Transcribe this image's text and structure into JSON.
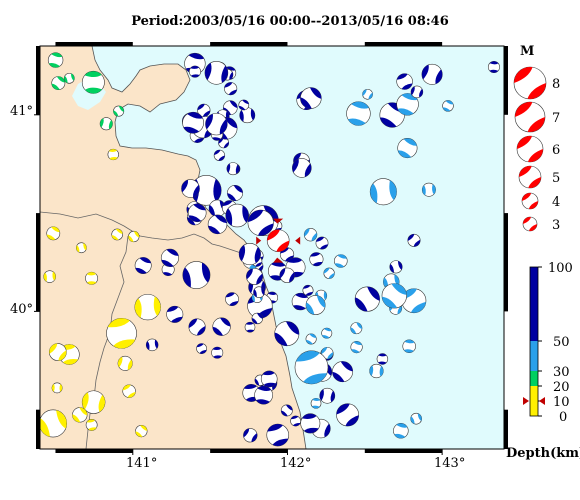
{
  "title": "Period:2003/05/16 00:00--2013/05/16 08:46",
  "map": {
    "lon_min": 140.4,
    "lon_max": 143.4,
    "lat_min": 39.3,
    "lat_max": 41.35,
    "lon_ticks": [
      "141°",
      "142°",
      "143°"
    ],
    "lat_ticks": [
      "41°",
      "40°"
    ],
    "land_color": "#fbe5c9",
    "sea_color": "#e0fbfd"
  },
  "magnitude_legend": {
    "title": "M",
    "entries": [
      "8",
      "7",
      "6",
      "5",
      "4",
      "3"
    ],
    "color": "#ff0000"
  },
  "depth_legend": {
    "title": "Depth(km)",
    "ticks": [
      "100",
      "50",
      "30",
      "20",
      "10",
      "0"
    ],
    "colors": {
      "shallow": "#fff000",
      "mid": "#00d060",
      "intermediate": "#2aa0ea",
      "deep": "#0000a0"
    }
  },
  "main_event": {
    "lon": 141.94,
    "lat": 40.36,
    "depth": 10
  }
}
